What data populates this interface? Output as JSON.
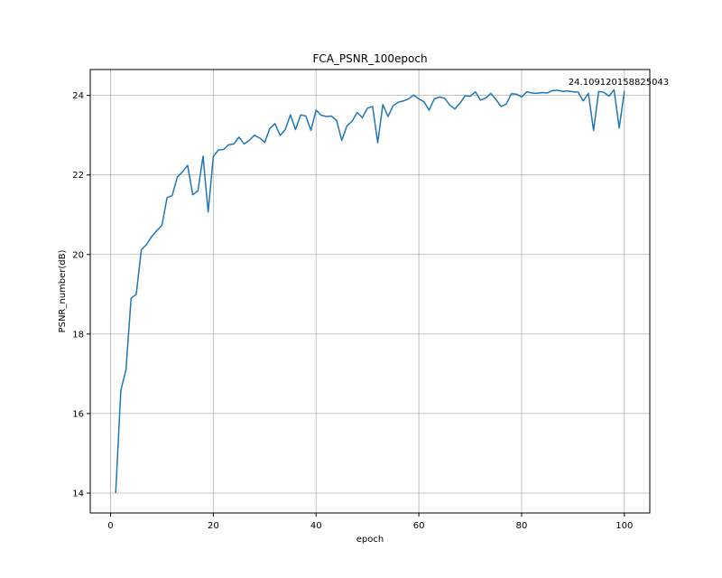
{
  "chart_data": {
    "type": "line",
    "title": "FCA_PSNR_100epoch",
    "xlabel": "epoch",
    "ylabel": "PSNR_number(dB)",
    "xlim": [
      -3.95,
      104.95
    ],
    "ylim": [
      13.5,
      24.65
    ],
    "xticks": [
      0,
      20,
      40,
      60,
      80,
      100
    ],
    "yticks": [
      14,
      16,
      18,
      20,
      22,
      24
    ],
    "grid": true,
    "line_color": "#1f77b4",
    "annotation": {
      "text": "24.109120158825043",
      "x": 100,
      "y": 24.109120158825043
    },
    "series": [
      {
        "x": [
          1,
          2,
          3,
          4,
          5,
          6,
          7,
          8,
          9,
          10,
          11,
          12,
          13,
          14,
          15,
          16,
          17,
          18,
          19,
          20,
          21,
          22,
          23,
          24,
          25,
          26,
          27,
          28,
          29,
          30,
          31,
          32,
          33,
          34,
          35,
          36,
          37,
          38,
          39,
          40,
          41,
          42,
          43,
          44,
          45,
          46,
          47,
          48,
          49,
          50,
          51,
          52,
          53,
          54,
          55,
          56,
          57,
          58,
          59,
          60,
          61,
          62,
          63,
          64,
          65,
          66,
          67,
          68,
          69,
          70,
          71,
          72,
          73,
          74,
          75,
          76,
          77,
          78,
          79,
          80,
          81,
          82,
          83,
          84,
          85,
          86,
          87,
          88,
          89,
          90,
          91,
          92,
          93,
          94,
          95,
          96,
          97,
          98,
          99,
          100
        ],
        "values": [
          14.0,
          16.58,
          17.1,
          18.9,
          19.0,
          20.12,
          20.25,
          20.45,
          20.6,
          20.73,
          21.43,
          21.48,
          21.95,
          22.08,
          22.24,
          21.5,
          21.6,
          22.47,
          21.07,
          22.46,
          22.63,
          22.64,
          22.76,
          22.78,
          22.95,
          22.78,
          22.87,
          23.0,
          22.93,
          22.82,
          23.17,
          23.29,
          22.99,
          23.14,
          23.51,
          23.14,
          23.51,
          23.48,
          23.12,
          23.63,
          23.5,
          23.47,
          23.48,
          23.37,
          22.87,
          23.23,
          23.35,
          23.57,
          23.44,
          23.68,
          23.72,
          22.81,
          23.77,
          23.47,
          23.74,
          23.83,
          23.86,
          23.91,
          24.01,
          23.91,
          23.84,
          23.63,
          23.91,
          23.96,
          23.93,
          23.76,
          23.66,
          23.8,
          23.99,
          23.98,
          24.09,
          23.88,
          23.93,
          24.05,
          23.9,
          23.72,
          23.78,
          24.04,
          24.03,
          23.96,
          24.09,
          24.06,
          24.05,
          24.07,
          24.06,
          24.12,
          24.13,
          24.1,
          24.11,
          24.09,
          24.08,
          23.86,
          24.05,
          23.12,
          24.1,
          24.08,
          23.98,
          24.14,
          23.18,
          24.109120158825043
        ]
      }
    ]
  }
}
